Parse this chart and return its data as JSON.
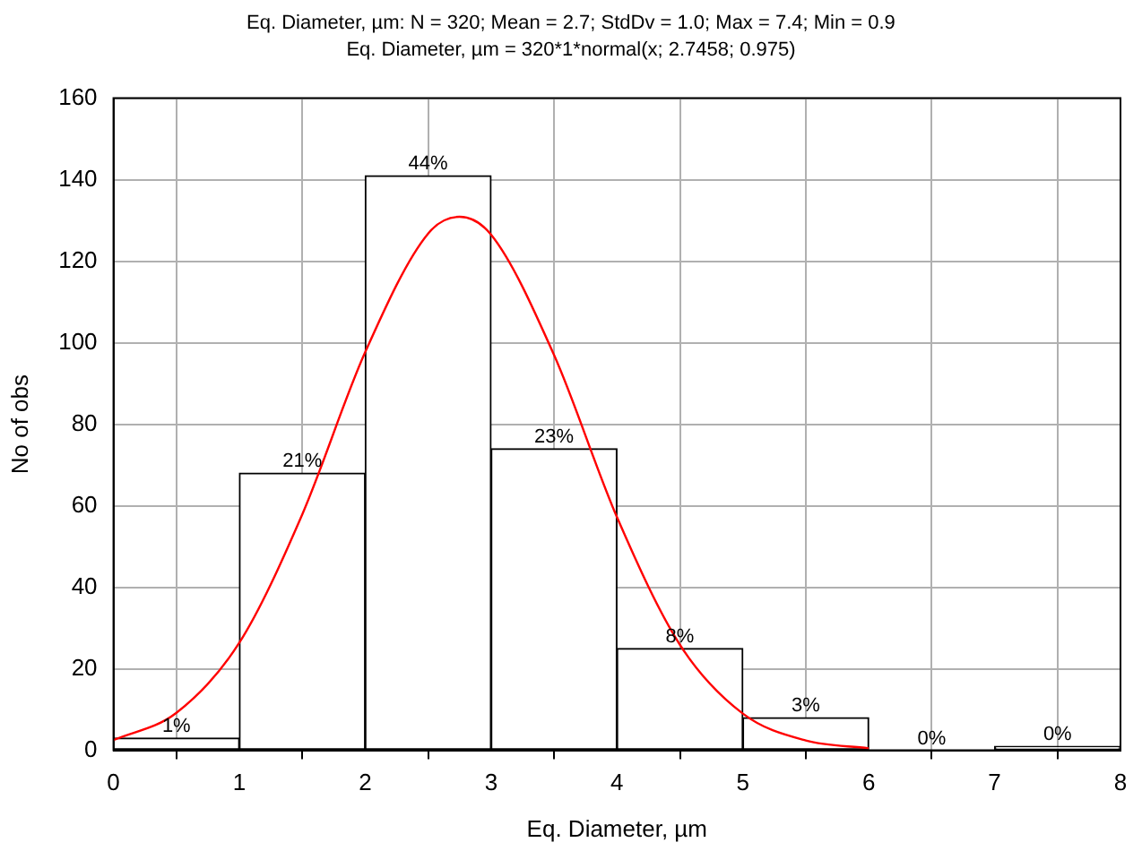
{
  "chart_data": {
    "type": "histogram",
    "title": "Eq. Diameter, µm:   N = 320; Mean = 2.7; StdDv = 1.0; Max = 7.4; Min = 0.9",
    "subtitle": "Eq. Diameter, µm = 320*1*normal(x; 2.7458; 0.975)",
    "xlabel": "Eq. Diameter, µm",
    "ylabel": "No of obs",
    "bins": [
      0,
      1,
      2,
      3,
      4,
      5,
      6,
      7,
      8
    ],
    "values": [
      3,
      68,
      141,
      74,
      25,
      8,
      0,
      1
    ],
    "color": "#ffffff",
    "annotations": [
      {
        "text": "1%",
        "x": 0.5,
        "y": 3
      },
      {
        "text": "21%",
        "x": 1.5,
        "y": 68
      },
      {
        "text": "44%",
        "x": 2.5,
        "y": 141
      },
      {
        "text": "23%",
        "x": 3.5,
        "y": 74
      },
      {
        "text": "8%",
        "x": 4.5,
        "y": 25
      },
      {
        "text": "3%",
        "x": 5.5,
        "y": 8
      },
      {
        "text": "0%",
        "x": 6.5,
        "y": 0
      },
      {
        "text": "0%",
        "x": 7.5,
        "y": 1
      }
    ],
    "series": [
      {
        "type": "line",
        "color": "#ff0000",
        "marker": "none",
        "x": [
          0,
          0.5,
          1,
          1.5,
          2,
          2.5,
          2.75,
          3,
          3.5,
          4,
          4.5,
          5,
          5.5,
          6
        ],
        "values": [
          2.5,
          9.2,
          26.4,
          57.9,
          97.7,
          126.8,
          130.9,
          126.5,
          97.0,
          57.2,
          25.9,
          9.0,
          2.4,
          0.5
        ]
      }
    ],
    "xlim": [
      0,
      8
    ],
    "xticks": [
      0,
      1,
      2,
      3,
      4,
      5,
      6,
      7,
      8
    ],
    "ylim": [
      0,
      160
    ],
    "yticks": [
      0,
      20,
      40,
      60,
      80,
      100,
      120,
      140,
      160
    ],
    "grid": true,
    "legend": false
  }
}
